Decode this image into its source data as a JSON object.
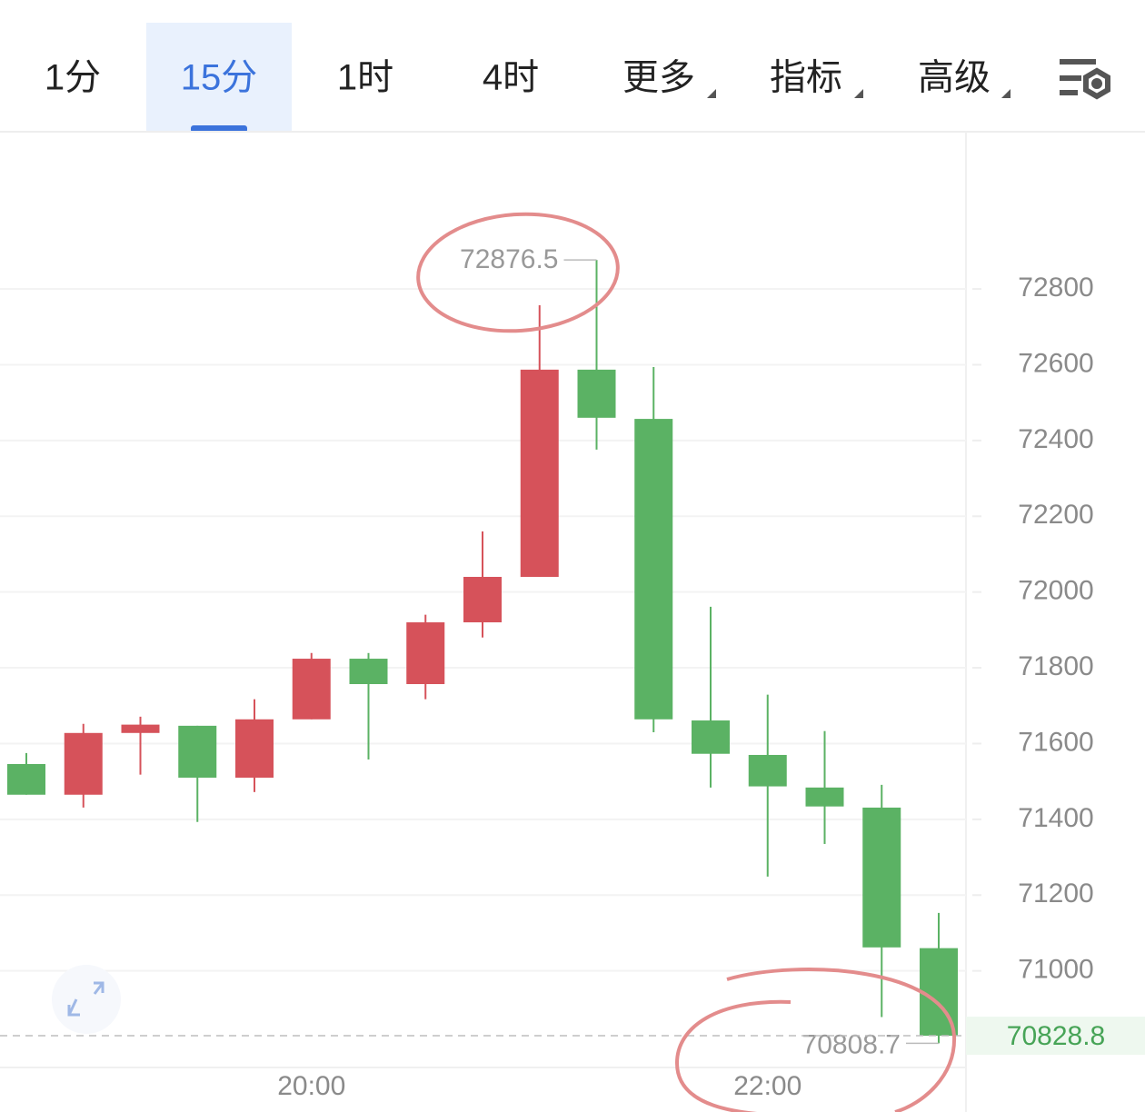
{
  "tabs": [
    "1分",
    "15分",
    "1时",
    "4时",
    "更多",
    "指标",
    "高级"
  ],
  "chart_data": {
    "type": "candlestick",
    "categories": [
      null,
      null,
      null,
      null,
      null,
      "20:00",
      null,
      null,
      null,
      null,
      null,
      null,
      null,
      "22:00",
      null,
      null,
      null
    ],
    "open": [
      71546,
      71465,
      71628,
      71647,
      71510,
      71664,
      71824,
      71757,
      71920,
      72040,
      72587,
      72457,
      71661,
      71570,
      71484,
      71431,
      71060
    ],
    "high": [
      71575,
      71652,
      71671,
      71647,
      71717,
      71839,
      71839,
      71940,
      72160,
      72757,
      72876.5,
      72594,
      71961,
      71729,
      71633,
      71491,
      71153
    ],
    "low": [
      71465,
      71431,
      71518,
      71393,
      71472,
      71664,
      71558,
      71717,
      71880,
      72040,
      72376,
      71630,
      71484,
      71249,
      71335,
      70878,
      70808.7
    ],
    "close": [
      71465,
      71628,
      71650,
      71510,
      71664,
      71824,
      71757,
      71920,
      72040,
      72587,
      72460,
      71664,
      71573,
      71487,
      71434,
      71062,
      70828.8
    ],
    "up_color": "#d6525a",
    "down_color": "#5bb264",
    "ylim": [
      70745,
      73215
    ],
    "yticks": [
      71000,
      71200,
      71400,
      71600,
      71800,
      72000,
      72200,
      72400,
      72600,
      72800
    ],
    "grid": true
  }
}
